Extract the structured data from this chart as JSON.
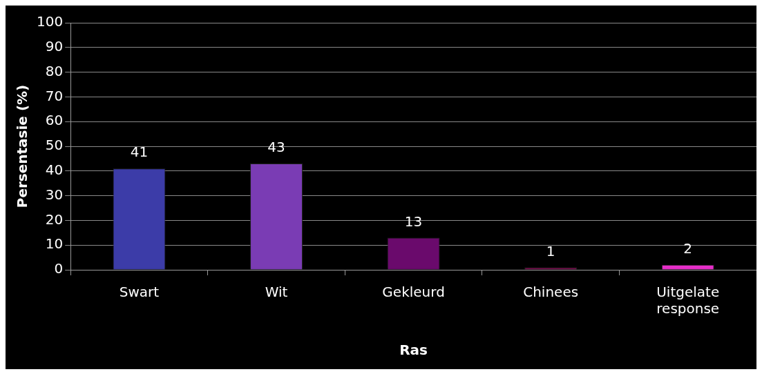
{
  "chart_data": {
    "type": "bar",
    "xlabel": "Ras",
    "ylabel": "Persentasie (%)",
    "categories": [
      "Swart",
      "Wit",
      "Gekleurd",
      "Chinees",
      "Uitgelate response"
    ],
    "values": [
      41,
      43,
      13,
      1,
      2
    ],
    "colors": [
      "#3c3ca8",
      "#7a3cb4",
      "#6a0a6c",
      "#7a1050",
      "#e62ec8"
    ],
    "ylim": [
      0,
      100
    ],
    "yticks": [
      0,
      10,
      20,
      30,
      40,
      50,
      60,
      70,
      80,
      90,
      100
    ],
    "grid": "y",
    "legend": false,
    "data_labels": true
  }
}
